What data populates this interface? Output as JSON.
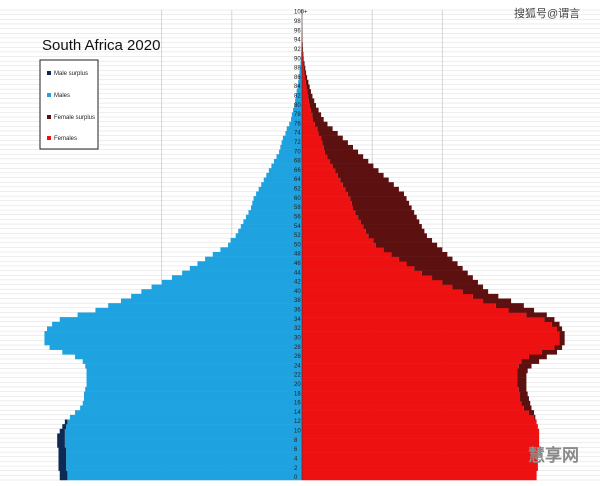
{
  "watermark_top": "搜狐号@谓言",
  "watermark_bottom": "慧享网",
  "chart_data": {
    "type": "population-pyramid",
    "title": "South Africa 2020",
    "legend": [
      {
        "label": "Male surplus",
        "color": "#0d2a55"
      },
      {
        "label": "Males",
        "color": "#1fa3e0"
      },
      {
        "label": "Female surplus",
        "color": "#5c1010"
      },
      {
        "label": "Females",
        "color": "#ee1111"
      }
    ],
    "age_labels": [
      "0",
      "2",
      "4",
      "6",
      "8",
      "10",
      "12",
      "14",
      "16",
      "18",
      "20",
      "22",
      "24",
      "26",
      "28",
      "30",
      "32",
      "34",
      "36",
      "38",
      "40",
      "42",
      "44",
      "46",
      "48",
      "50",
      "52",
      "54",
      "56",
      "58",
      "60",
      "62",
      "64",
      "66",
      "68",
      "70",
      "72",
      "74",
      "76",
      "78",
      "80",
      "82",
      "84",
      "86",
      "88",
      "90",
      "92",
      "94",
      "96",
      "98",
      "100+"
    ],
    "x_range_each_side": 100,
    "ages": [
      0,
      1,
      2,
      3,
      4,
      5,
      6,
      7,
      8,
      9,
      10,
      11,
      12,
      13,
      14,
      15,
      16,
      17,
      18,
      19,
      20,
      21,
      22,
      23,
      24,
      25,
      26,
      27,
      28,
      29,
      30,
      31,
      32,
      33,
      34,
      35,
      36,
      37,
      38,
      39,
      40,
      41,
      42,
      43,
      44,
      45,
      46,
      47,
      48,
      49,
      50,
      51,
      52,
      53,
      54,
      55,
      56,
      57,
      58,
      59,
      60,
      61,
      62,
      63,
      64,
      65,
      66,
      67,
      68,
      69,
      70,
      71,
      72,
      73,
      74,
      75,
      76,
      77,
      78,
      79,
      80,
      81,
      82,
      83,
      84,
      85,
      86,
      87,
      88,
      89,
      90,
      91,
      92,
      93,
      94,
      95,
      96,
      97,
      98,
      99,
      100
    ],
    "males": [
      95,
      95,
      95.5,
      95.5,
      95.5,
      95.5,
      95.5,
      96,
      96,
      96,
      95,
      94,
      93,
      91,
      89,
      87,
      86,
      85.5,
      85.5,
      85,
      84.5,
      84.5,
      84.5,
      84.5,
      85,
      86,
      89,
      94,
      99,
      101,
      101,
      101,
      100,
      98,
      95,
      88,
      81,
      76,
      71,
      67,
      63,
      59,
      55,
      51,
      47,
      44,
      41,
      38,
      35,
      32,
      29,
      28,
      26,
      25,
      24,
      23,
      22,
      21,
      20,
      19.5,
      19,
      18,
      17,
      16,
      15,
      14,
      13,
      12,
      11,
      10,
      9,
      8.5,
      8,
      7.5,
      6.5,
      6,
      5,
      4.3,
      4,
      3.5,
      3,
      2.7,
      2.4,
      2.1,
      1.8,
      1.5,
      1.2,
      1,
      0.8,
      0.6,
      0.5,
      0.35,
      0.25,
      0.2,
      0.15,
      0.1,
      0.05,
      0.03,
      0.02,
      0.01,
      0.01
    ],
    "females": [
      92,
      92,
      92.5,
      92.5,
      92.5,
      92.5,
      92.5,
      93,
      93,
      93,
      93,
      92.5,
      92,
      91.5,
      91,
      90,
      89.5,
      89,
      88.5,
      88,
      88,
      88,
      88,
      88.5,
      90,
      93,
      96,
      100,
      102,
      103,
      103,
      103,
      102,
      101,
      99,
      96,
      91,
      87,
      82,
      77,
      73,
      71,
      69,
      67,
      65,
      63,
      61,
      59,
      57,
      55,
      53,
      51,
      49,
      48,
      47,
      46,
      45,
      44,
      43,
      42,
      41,
      40,
      38,
      36,
      34,
      32,
      30,
      28,
      26,
      24,
      22,
      20,
      18,
      16,
      14,
      12,
      10,
      8.5,
      7.5,
      6.5,
      5.5,
      4.8,
      4.1,
      3.5,
      3,
      2.5,
      2,
      1.6,
      1.3,
      1,
      0.7,
      0.55,
      0.4,
      0.3,
      0.2,
      0.15,
      0.1,
      0.05,
      0.03,
      0.02,
      0.01
    ],
    "grid": true
  }
}
